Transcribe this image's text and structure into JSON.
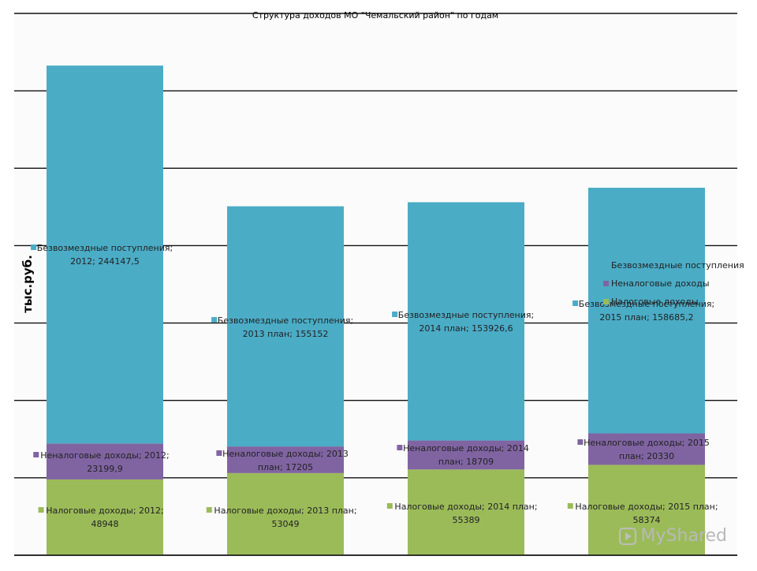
{
  "chart_data": {
    "type": "bar",
    "stacked": true,
    "title": "Структура доходов МО \"Чемальский район\" по годам",
    "ylabel": "тыс.руб.",
    "xlabel": "",
    "ylim": [
      0,
      350000
    ],
    "grid": true,
    "legend_position": "right",
    "categories": [
      "2012",
      "2013 план",
      "2014 план",
      "2015 план"
    ],
    "series": [
      {
        "name": "Налоговые доходы",
        "color": "#9bbb59",
        "values": [
          48948,
          53049,
          55389,
          58374
        ],
        "labels": [
          "Налоговые доходы; 2012; 48948",
          "Налоговые доходы; 2013 план; 53049",
          "Налоговые доходы; 2014 план; 55389",
          "Налоговые доходы; 2015 план; 58374"
        ]
      },
      {
        "name": "Неналоговые доходы",
        "color": "#8064a2",
        "values": [
          23199.9,
          17205,
          18709,
          20330
        ],
        "labels": [
          "Неналоговые доходы; 2012; 23199,9",
          "Неналоговые доходы; 2013 план; 17205",
          "Неналоговые доходы; 2014 план; 18709",
          "Неналоговые доходы; 2015 план; 20330"
        ]
      },
      {
        "name": "Безвозмездные поступления",
        "color": "#4bacc6",
        "values": [
          244147.5,
          155152,
          153926.6,
          158685.2
        ],
        "labels": [
          "Безвозмездные поступления; 2012; 244147,5",
          "Безвозмездные поступления; 2013 план; 155152",
          "Безвозмездные поступления; 2014 план; 153926,6",
          "Безвозмездные поступления; 2015 план; 158685,2"
        ]
      }
    ],
    "legend": [
      "Безвозмездные поступления",
      "Неналоговые доходы",
      "Налоговые доходы"
    ]
  },
  "watermark": {
    "text": "MyShared"
  }
}
